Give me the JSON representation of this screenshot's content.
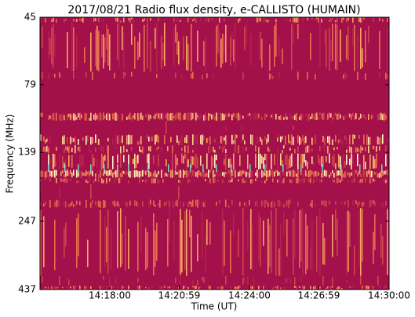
{
  "chart_data": {
    "type": "spectrogram",
    "title": "2017/08/21  Radio flux density, e-CALLISTO (HUMAIN)",
    "x_label": "Time (UT)",
    "y_label": "Frequency (MHz)",
    "xlim": [
      51300,
      52200
    ],
    "xticks": [
      {
        "value": 51480,
        "label": "14:18:00"
      },
      {
        "value": 51659,
        "label": "14:20:59"
      },
      {
        "value": 51840,
        "label": "14:24:00"
      },
      {
        "value": 52019,
        "label": "14:26:59"
      },
      {
        "value": 52200,
        "label": "14:30:00"
      }
    ],
    "ylim": [
      45,
      437
    ],
    "y_log": true,
    "y_inverted": true,
    "yticks": [
      45,
      79,
      139,
      247,
      437
    ]
  }
}
